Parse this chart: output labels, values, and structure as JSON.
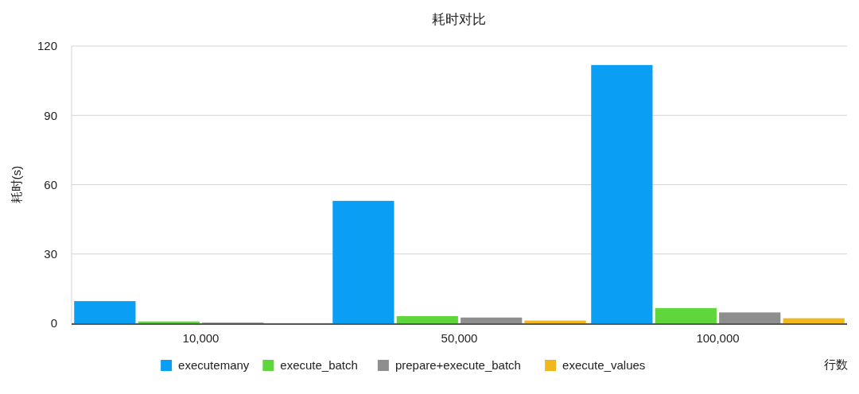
{
  "chart_data": {
    "type": "bar",
    "title": "耗时对比",
    "xlabel": "行数",
    "ylabel": "耗时(s)",
    "categories": [
      "10,000",
      "50,000",
      "100,000"
    ],
    "series": [
      {
        "name": "executemany",
        "color": "#0a9ef5",
        "values": [
          9.6,
          53,
          111.8
        ]
      },
      {
        "name": "execute_batch",
        "color": "#5fd63b",
        "values": [
          0.8,
          3.1,
          6.6
        ]
      },
      {
        "name": "prepare+execute_batch",
        "color": "#8e8e8e",
        "values": [
          0.3,
          2.5,
          4.7
        ]
      },
      {
        "name": "execute_values",
        "color": "#f0b81c",
        "values": [
          null,
          1.2,
          2.2
        ]
      }
    ],
    "ylim": [
      0,
      120
    ],
    "yticks": [
      0,
      30,
      60,
      90,
      120
    ],
    "grid": "y",
    "legend": "bottom"
  }
}
